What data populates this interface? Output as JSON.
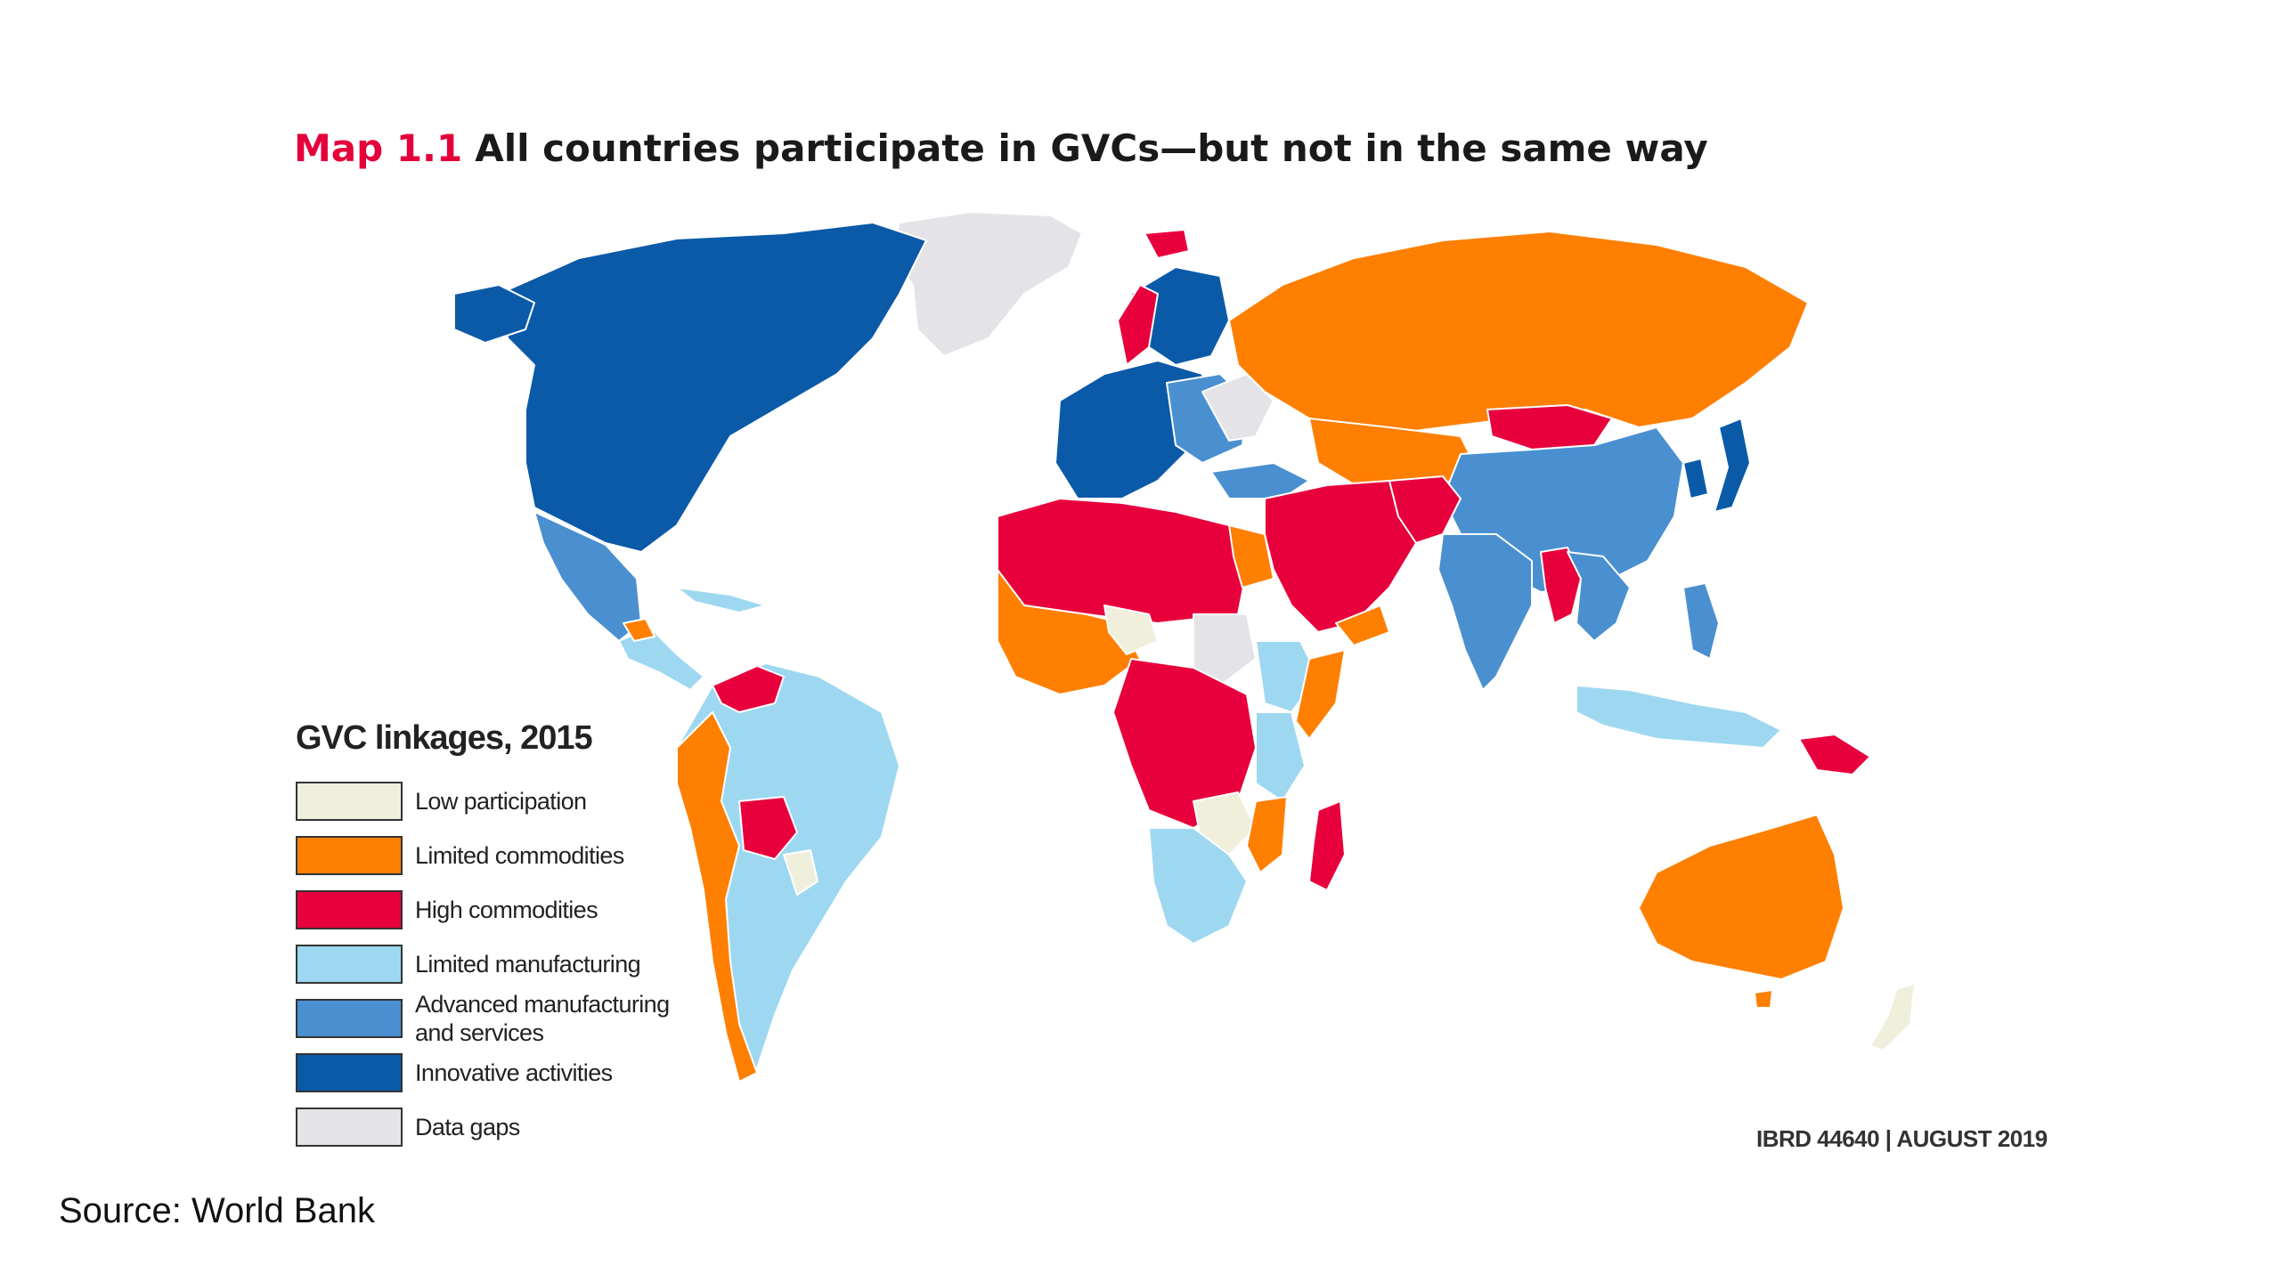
{
  "title": {
    "map_number": "Map 1.1",
    "text": "All countries participate in GVCs—but not in the same way"
  },
  "legend": {
    "title": "GVC linkages, 2015",
    "items": [
      {
        "label": "Low participation",
        "color": "#f0efdc"
      },
      {
        "label": "Limited commodities",
        "color": "#ff7f00"
      },
      {
        "label": "High commodities",
        "color": "#e8003d"
      },
      {
        "label": "Limited manufacturing",
        "color": "#9ed8f0"
      },
      {
        "label": "Advanced manufacturing\nand services",
        "color": "#4a90d0"
      },
      {
        "label": "Innovative activities",
        "color": "#0a5aa8"
      },
      {
        "label": "Data gaps",
        "color": "#e4e4e8"
      }
    ]
  },
  "credit": "IBRD 44640 | AUGUST 2019",
  "source": "Source:  World Bank"
}
